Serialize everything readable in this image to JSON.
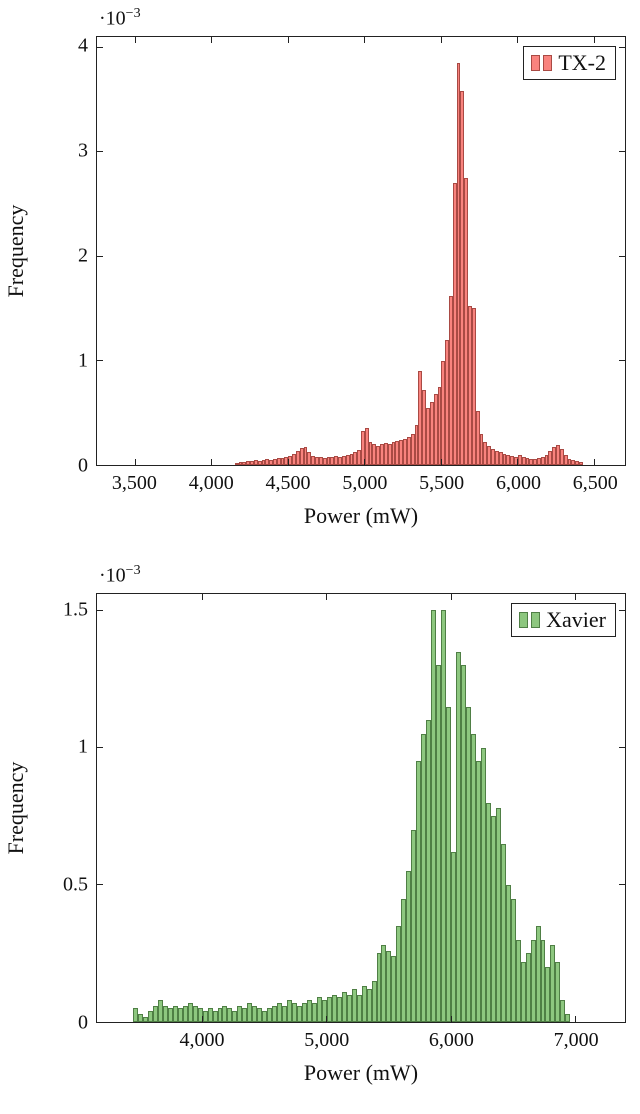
{
  "page_background": "#ffffff",
  "chart_data": [
    {
      "type": "bar",
      "subtype": "histogram",
      "title": "",
      "legend": "TX-2",
      "legend_position": "top right",
      "grid": false,
      "xlabel": "Power (mW)",
      "ylabel": "Frequency",
      "y_mult_base": "·10",
      "y_mult_exp": "−3",
      "bar_fill": "#f9837e",
      "bar_edge": "#a94a44",
      "xlim": [
        3250,
        6700
      ],
      "ylim": [
        0,
        4.1
      ],
      "xticks": [
        {
          "v": 3500,
          "label": "3,500"
        },
        {
          "v": 4000,
          "label": "4,000"
        },
        {
          "v": 4500,
          "label": "4,500"
        },
        {
          "v": 5000,
          "label": "5,000"
        },
        {
          "v": 5500,
          "label": "5,500"
        },
        {
          "v": 6000,
          "label": "6,000"
        },
        {
          "v": 6500,
          "label": "6,500"
        }
      ],
      "yticks": [
        {
          "v": 0,
          "label": "0"
        },
        {
          "v": 1,
          "label": "1"
        },
        {
          "v": 2,
          "label": "2"
        },
        {
          "v": 3,
          "label": "3"
        },
        {
          "v": 4,
          "label": "4"
        }
      ],
      "y_unit": "1e-3",
      "bin_start": 4150,
      "bin_width": 25,
      "values": [
        0.02,
        0.03,
        0.03,
        0.04,
        0.04,
        0.05,
        0.04,
        0.05,
        0.06,
        0.05,
        0.06,
        0.07,
        0.07,
        0.08,
        0.09,
        0.11,
        0.13,
        0.16,
        0.17,
        0.12,
        0.09,
        0.08,
        0.08,
        0.07,
        0.08,
        0.08,
        0.09,
        0.08,
        0.09,
        0.1,
        0.11,
        0.12,
        0.14,
        0.33,
        0.35,
        0.22,
        0.2,
        0.18,
        0.2,
        0.21,
        0.2,
        0.22,
        0.23,
        0.24,
        0.25,
        0.27,
        0.3,
        0.38,
        0.9,
        0.72,
        0.55,
        0.6,
        0.68,
        0.75,
        1.0,
        1.2,
        1.62,
        2.7,
        3.85,
        3.58,
        2.75,
        1.52,
        1.5,
        0.52,
        0.3,
        0.22,
        0.18,
        0.15,
        0.13,
        0.12,
        0.11,
        0.1,
        0.09,
        0.08,
        0.1,
        0.08,
        0.07,
        0.06,
        0.06,
        0.07,
        0.08,
        0.1,
        0.13,
        0.17,
        0.19,
        0.15,
        0.1,
        0.06,
        0.05,
        0.04,
        0.03
      ]
    },
    {
      "type": "bar",
      "subtype": "histogram",
      "title": "",
      "legend": "Xavier",
      "legend_position": "top right",
      "grid": false,
      "xlabel": "Power (mW)",
      "ylabel": "Frequency",
      "y_mult_base": "·10",
      "y_mult_exp": "−3",
      "bar_fill": "#8dc77f",
      "bar_edge": "#4f7f45",
      "xlim": [
        3150,
        7400
      ],
      "ylim": [
        0,
        1.56
      ],
      "xticks": [
        {
          "v": 4000,
          "label": "4,000"
        },
        {
          "v": 5000,
          "label": "5,000"
        },
        {
          "v": 6000,
          "label": "6,000"
        },
        {
          "v": 7000,
          "label": "7,000"
        }
      ],
      "yticks": [
        {
          "v": 0,
          "label": "0"
        },
        {
          "v": 0.5,
          "label": "0.5"
        },
        {
          "v": 1,
          "label": "1"
        },
        {
          "v": 1.5,
          "label": "1.5"
        }
      ],
      "y_unit": "1e-3",
      "bin_start": 3440,
      "bin_width": 40,
      "values": [
        0.05,
        0.03,
        0.02,
        0.04,
        0.06,
        0.08,
        0.06,
        0.05,
        0.06,
        0.05,
        0.06,
        0.07,
        0.06,
        0.05,
        0.04,
        0.05,
        0.04,
        0.05,
        0.06,
        0.05,
        0.04,
        0.06,
        0.05,
        0.07,
        0.06,
        0.05,
        0.04,
        0.05,
        0.06,
        0.07,
        0.06,
        0.08,
        0.07,
        0.06,
        0.07,
        0.08,
        0.07,
        0.09,
        0.08,
        0.09,
        0.1,
        0.09,
        0.11,
        0.1,
        0.12,
        0.1,
        0.13,
        0.12,
        0.15,
        0.25,
        0.28,
        0.26,
        0.24,
        0.35,
        0.45,
        0.55,
        0.7,
        0.95,
        1.05,
        1.1,
        1.5,
        1.3,
        1.5,
        1.15,
        0.62,
        1.35,
        1.3,
        1.15,
        1.05,
        0.95,
        1.0,
        0.8,
        0.75,
        0.78,
        0.65,
        0.5,
        0.45,
        0.3,
        0.22,
        0.25,
        0.3,
        0.35,
        0.3,
        0.2,
        0.28,
        0.22,
        0.08,
        0.03
      ]
    }
  ]
}
